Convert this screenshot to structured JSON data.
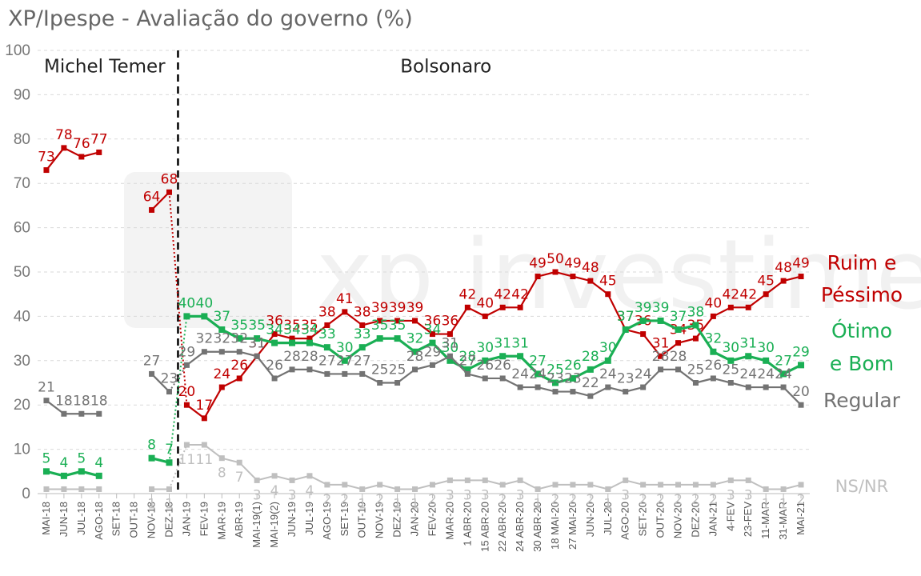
{
  "chart_data": {
    "type": "line",
    "title": "XP/Ipespe - Avaliação do governo (%)",
    "ylim": [
      0,
      100
    ],
    "yticks": [
      0,
      10,
      20,
      30,
      40,
      50,
      60,
      70,
      80,
      90,
      100
    ],
    "grid": true,
    "x": [
      "MAI-18",
      "JUN-18",
      "JUL-18",
      "AGO-18",
      "SET-18",
      "OUT-18",
      "NOV-18",
      "DEZ-18",
      "JAN-19",
      "FEV-19",
      "MAR-19",
      "ABR-19",
      "MAI-19(1)",
      "MAI-19(2)",
      "JUN-19",
      "JUL-19",
      "AGO-19",
      "SET-19",
      "OUT-19",
      "NOV-19",
      "DEZ-19",
      "JAN-20",
      "FEV-20",
      "MAR-20",
      "1 ABR-20",
      "15 ABR-20",
      "22 ABR-20",
      "24 ABR-20",
      "30 ABR-20",
      "18 MAI-20",
      "27 MAI-20",
      "JUN-20",
      "JUL-20",
      "AGO-20",
      "SET-20",
      "OUT-20",
      "NOV-20",
      "DEZ-20",
      "JAN-21",
      "4-FEV",
      "23-FEV",
      "11-MAR",
      "31-MAR",
      "MAI-21"
    ],
    "periods": [
      {
        "label": "Michel Temer"
      },
      {
        "label": "Bolsonaro"
      }
    ],
    "divider_after": "DEZ-18",
    "series": [
      {
        "name": "Ruim e Péssimo",
        "color": "#c00000",
        "values": [
          73,
          78,
          76,
          77,
          null,
          null,
          64,
          68,
          20,
          17,
          24,
          26,
          31,
          36,
          35,
          35,
          38,
          41,
          38,
          39,
          39,
          39,
          36,
          36,
          42,
          40,
          42,
          42,
          49,
          50,
          49,
          48,
          45,
          37,
          36,
          31,
          34,
          35,
          40,
          42,
          42,
          45,
          48,
          49
        ],
        "labels": [
          "73",
          "78",
          "76",
          "77",
          "",
          "",
          "64",
          "68",
          "20",
          "17",
          "24",
          "26",
          "31",
          "36",
          "35",
          "35",
          "38",
          "41",
          "38",
          "39",
          "39",
          "39",
          "36",
          "36",
          "42",
          "40",
          "42",
          "42",
          "49",
          "50",
          "49",
          "48",
          "45",
          "37",
          "36",
          "31",
          "34",
          "35",
          "40",
          "42",
          "42",
          "45",
          "48",
          "49"
        ]
      },
      {
        "name": "Ótimo e Bom",
        "color": "#1aaf54",
        "values": [
          5,
          4,
          5,
          4,
          null,
          null,
          8,
          7,
          40,
          40,
          37,
          35,
          35,
          34,
          34,
          34,
          33,
          30,
          33,
          35,
          35,
          32,
          34,
          30,
          28,
          30,
          31,
          31,
          27,
          25,
          26,
          28,
          30,
          37,
          39,
          39,
          37,
          38,
          32,
          30,
          31,
          30,
          27,
          29
        ],
        "labels": [
          "5",
          "4",
          "5",
          "4",
          "",
          "",
          "8",
          "7",
          "40",
          "40",
          "37",
          "35",
          "35",
          "34",
          "34",
          "34",
          "33",
          "30",
          "33",
          "35",
          "35",
          "32",
          "34",
          "30",
          "28",
          "30",
          "31",
          "31",
          "27",
          "25",
          "26",
          "28",
          "30",
          "37",
          "39",
          "39",
          "37",
          "38",
          "32",
          "30",
          "31",
          "30",
          "27",
          "29"
        ]
      },
      {
        "name": "Regular",
        "color": "#737373",
        "values": [
          21,
          18,
          18,
          18,
          null,
          null,
          27,
          23,
          29,
          32,
          32,
          32,
          31,
          26,
          28,
          28,
          27,
          27,
          27,
          25,
          25,
          28,
          29,
          31,
          27,
          26,
          26,
          24,
          24,
          23,
          23,
          22,
          24,
          23,
          24,
          28,
          28,
          25,
          26,
          25,
          24,
          24,
          24,
          20
        ],
        "labels": [
          "21",
          "18",
          "18",
          "18",
          "",
          "",
          "27",
          "23",
          "29",
          "32",
          "32",
          "32",
          "31",
          "26",
          "28",
          "28",
          "27",
          "27",
          "27",
          "25",
          "25",
          "28",
          "29",
          "31",
          "27",
          "26",
          "26",
          "24",
          "24",
          "23",
          "23",
          "22",
          "24",
          "23",
          "24",
          "28",
          "28",
          "25",
          "26",
          "25",
          "24",
          "24",
          "24",
          "20"
        ]
      },
      {
        "name": "NS/NR",
        "color": "#bfbfbf",
        "values": [
          1,
          1,
          1,
          1,
          null,
          null,
          1,
          1,
          11,
          11,
          8,
          7,
          3,
          4,
          3,
          4,
          2,
          2,
          1,
          2,
          1,
          1,
          2,
          3,
          3,
          3,
          2,
          3,
          1,
          2,
          2,
          2,
          1,
          3,
          2,
          2,
          2,
          2,
          2,
          3,
          3,
          1,
          1,
          2
        ],
        "labels": [
          "",
          "",
          "",
          "",
          "",
          "",
          "1",
          "1",
          "11",
          "11",
          "8",
          "7",
          "3",
          "4",
          "3",
          "4",
          "2",
          "2",
          "1",
          "2",
          "1",
          "1",
          "2",
          "3",
          "3",
          "3",
          "2",
          "3",
          "1",
          "2",
          "2",
          "2",
          "1",
          "3",
          "2",
          "2",
          "2",
          "2",
          "2",
          "3",
          "3",
          "1",
          "1",
          "2"
        ]
      }
    ],
    "legend": [
      {
        "line1": "Ruim e",
        "line2": "Péssimo",
        "color": "#c00000"
      },
      {
        "line1": "Ótimo",
        "line2": "e Bom",
        "color": "#1aaf54"
      },
      {
        "line1": "Regular",
        "line2": "",
        "color": "#737373"
      },
      {
        "line1": "NS/NR",
        "line2": "",
        "color": "#bfbfbf"
      }
    ],
    "watermark": "xp investimentos"
  }
}
